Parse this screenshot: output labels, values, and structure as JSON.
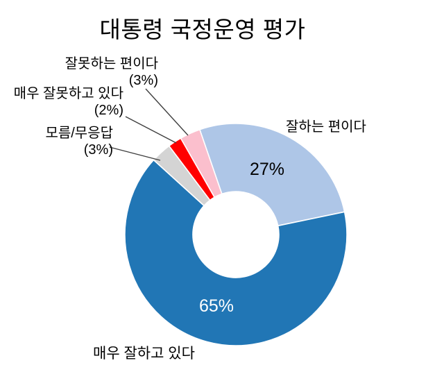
{
  "page": {
    "background_color": "#ffffff",
    "text_color": "#000000"
  },
  "chart_data": {
    "type": "pie",
    "subtype": "donut",
    "title": "대통령 국정운영 평가",
    "legend": "none (callout labels)",
    "direction": "clockwise",
    "start_angle_deg": -19,
    "hole_ratio": 0.39,
    "slice_gap_color": "#ffffff",
    "leader_line_color": "#3f3f3f",
    "slices": [
      {
        "label": "잘하는 편이다",
        "value": 27,
        "value_label": "27%",
        "color": "#aec6e7",
        "label_position": "outside-right"
      },
      {
        "label": "매우 잘하고 있다",
        "value": 65,
        "value_label": "65%",
        "color": "#2176b5",
        "label_position": "outside-bottom"
      },
      {
        "label": "모름/무응답",
        "value": 3,
        "value_label": "(3%)",
        "color": "#d4d4d4",
        "label_position": "callout-left"
      },
      {
        "label": "매우 잘못하고 있다",
        "value": 2,
        "value_label": "(2%)",
        "color": "#ff0000",
        "label_position": "callout-left"
      },
      {
        "label": "잘못하는 편이다",
        "value": 3,
        "value_label": "(3%)",
        "color": "#fbbfcd",
        "label_position": "callout-left"
      }
    ]
  }
}
